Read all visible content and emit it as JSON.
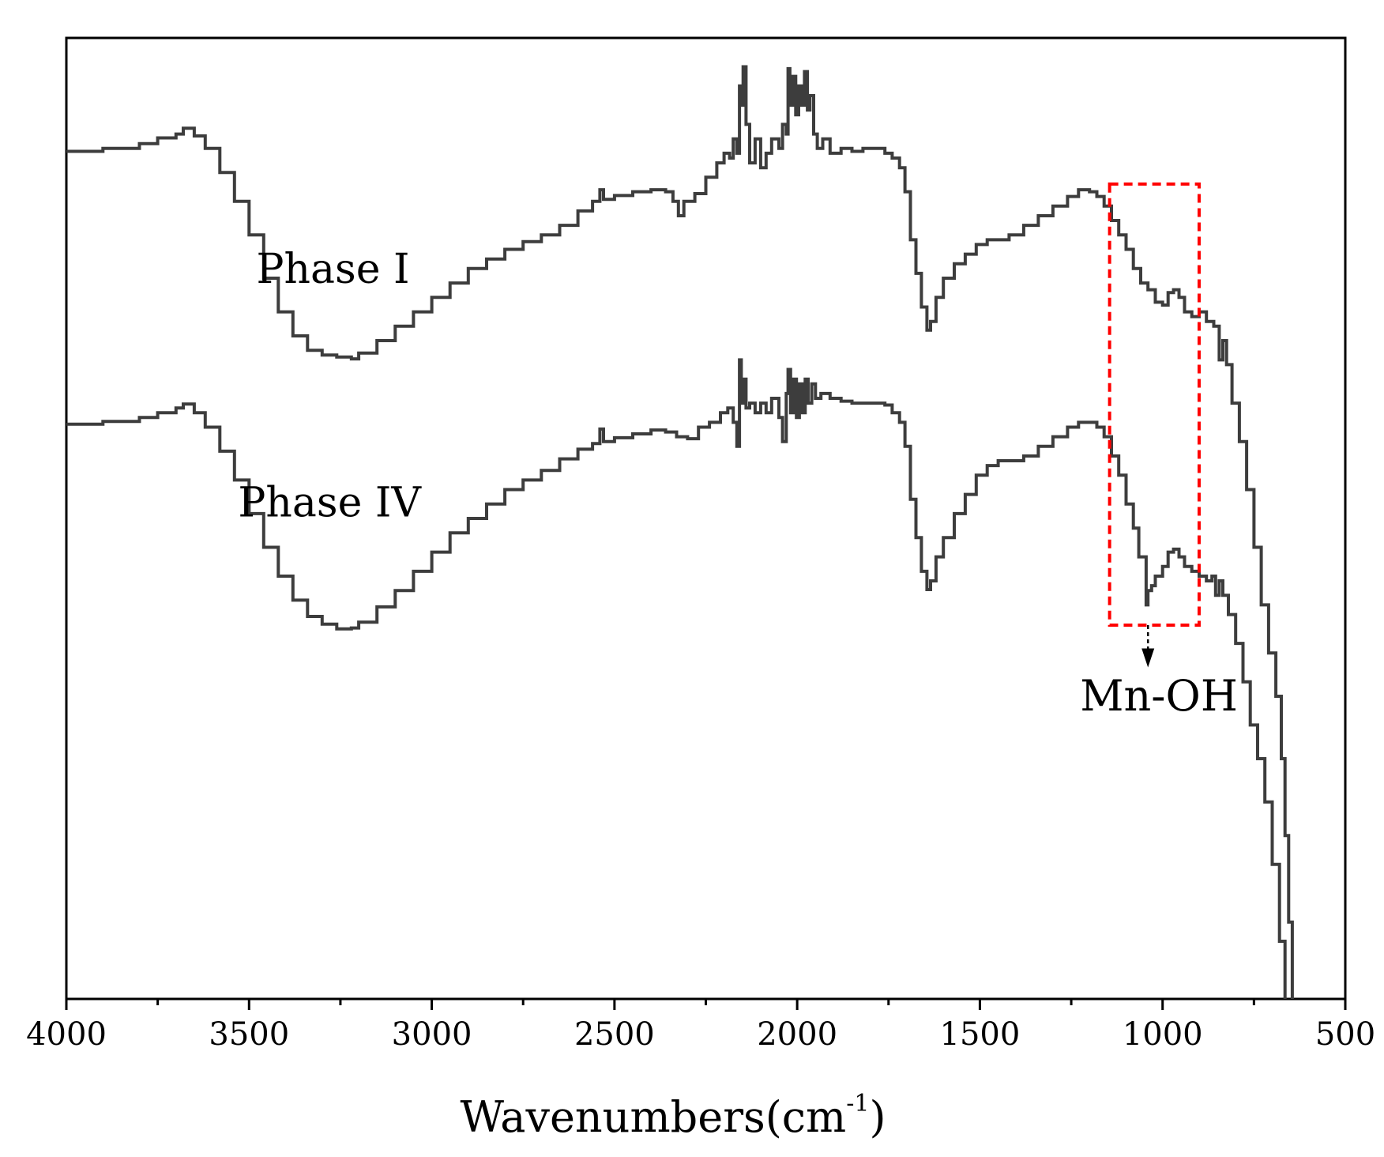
{
  "chart_data": {
    "type": "line",
    "title": "",
    "xlabel": "Wavenumbers(cm",
    "xlabel_sup": "-1",
    "xlabel_close": ")",
    "ylabel": "",
    "xlim": [
      4000,
      500
    ],
    "ylim": [
      0,
      100
    ],
    "x_ticks": [
      {
        "value": 4000,
        "label": "4000"
      },
      {
        "value": 3500,
        "label": "3500"
      },
      {
        "value": 3000,
        "label": "3000"
      },
      {
        "value": 2500,
        "label": "2500"
      },
      {
        "value": 2000,
        "label": "2000"
      },
      {
        "value": 1500,
        "label": "1500"
      },
      {
        "value": 1000,
        "label": "1000"
      },
      {
        "value": 500,
        "label": "500"
      }
    ],
    "x_minor_ticks": [
      3750,
      3250,
      2750,
      2250,
      1750,
      1250,
      750
    ],
    "grid": false,
    "line_color": "#3d3d3d",
    "series": [
      {
        "name": "Phase I",
        "label_at": [
          3480,
          74.5
        ],
        "points": [
          [
            4000,
            88.2
          ],
          [
            3900,
            88.5
          ],
          [
            3800,
            89.0
          ],
          [
            3750,
            89.6
          ],
          [
            3700,
            90.0
          ],
          [
            3680,
            90.6
          ],
          [
            3650,
            89.8
          ],
          [
            3620,
            88.5
          ],
          [
            3580,
            86.0
          ],
          [
            3540,
            83.0
          ],
          [
            3500,
            79.5
          ],
          [
            3460,
            75.0
          ],
          [
            3420,
            71.5
          ],
          [
            3380,
            69.0
          ],
          [
            3340,
            67.5
          ],
          [
            3300,
            67.0
          ],
          [
            3260,
            66.8
          ],
          [
            3220,
            66.6
          ],
          [
            3200,
            67.2
          ],
          [
            3150,
            68.5
          ],
          [
            3100,
            70.0
          ],
          [
            3050,
            71.5
          ],
          [
            3000,
            73.0
          ],
          [
            2950,
            74.5
          ],
          [
            2900,
            76.0
          ],
          [
            2850,
            77.0
          ],
          [
            2800,
            78.0
          ],
          [
            2750,
            78.8
          ],
          [
            2700,
            79.5
          ],
          [
            2650,
            80.5
          ],
          [
            2600,
            82.0
          ],
          [
            2560,
            83.0
          ],
          [
            2540,
            84.2
          ],
          [
            2530,
            83.2
          ],
          [
            2500,
            83.6
          ],
          [
            2450,
            84.0
          ],
          [
            2400,
            84.2
          ],
          [
            2360,
            84.0
          ],
          [
            2340,
            83.0
          ],
          [
            2325,
            81.5
          ],
          [
            2310,
            83.0
          ],
          [
            2280,
            83.8
          ],
          [
            2250,
            85.5
          ],
          [
            2220,
            87.0
          ],
          [
            2200,
            88.0
          ],
          [
            2185,
            87.5
          ],
          [
            2175,
            89.5
          ],
          [
            2165,
            88.0
          ],
          [
            2158,
            95.0
          ],
          [
            2153,
            93.0
          ],
          [
            2148,
            97.0
          ],
          [
            2140,
            91.0
          ],
          [
            2130,
            87.0
          ],
          [
            2115,
            89.5
          ],
          [
            2100,
            86.5
          ],
          [
            2085,
            88.0
          ],
          [
            2070,
            89.5
          ],
          [
            2050,
            88.5
          ],
          [
            2040,
            91.0
          ],
          [
            2030,
            90.0
          ],
          [
            2025,
            96.8
          ],
          [
            2020,
            93.0
          ],
          [
            2012,
            96.0
          ],
          [
            2004,
            92.0
          ],
          [
            1996,
            95.0
          ],
          [
            1988,
            93.0
          ],
          [
            1980,
            96.5
          ],
          [
            1972,
            92.5
          ],
          [
            1965,
            94.0
          ],
          [
            1955,
            90.0
          ],
          [
            1945,
            88.5
          ],
          [
            1930,
            89.5
          ],
          [
            1910,
            88.0
          ],
          [
            1880,
            88.5
          ],
          [
            1850,
            88.2
          ],
          [
            1820,
            88.5
          ],
          [
            1790,
            88.5
          ],
          [
            1760,
            88.0
          ],
          [
            1740,
            87.5
          ],
          [
            1720,
            86.5
          ],
          [
            1705,
            84.0
          ],
          [
            1690,
            79.0
          ],
          [
            1675,
            75.5
          ],
          [
            1660,
            72.0
          ],
          [
            1645,
            69.6
          ],
          [
            1635,
            70.5
          ],
          [
            1620,
            73.0
          ],
          [
            1600,
            75.0
          ],
          [
            1570,
            76.5
          ],
          [
            1540,
            77.5
          ],
          [
            1510,
            78.5
          ],
          [
            1480,
            79.0
          ],
          [
            1450,
            79.0
          ],
          [
            1420,
            79.5
          ],
          [
            1380,
            80.5
          ],
          [
            1340,
            81.5
          ],
          [
            1300,
            82.5
          ],
          [
            1260,
            83.5
          ],
          [
            1230,
            84.2
          ],
          [
            1200,
            84.0
          ],
          [
            1180,
            83.5
          ],
          [
            1160,
            82.5
          ],
          [
            1140,
            81.0
          ],
          [
            1120,
            79.5
          ],
          [
            1100,
            78.0
          ],
          [
            1080,
            76.0
          ],
          [
            1060,
            74.5
          ],
          [
            1040,
            73.8
          ],
          [
            1020,
            72.5
          ],
          [
            1000,
            72.2
          ],
          [
            985,
            73.5
          ],
          [
            970,
            73.8
          ],
          [
            955,
            73.0
          ],
          [
            940,
            71.5
          ],
          [
            920,
            71.0
          ],
          [
            900,
            71.5
          ],
          [
            880,
            70.5
          ],
          [
            860,
            70.0
          ],
          [
            845,
            66.5
          ],
          [
            835,
            68.5
          ],
          [
            825,
            66.0
          ],
          [
            810,
            62.0
          ],
          [
            790,
            58.0
          ],
          [
            770,
            53.0
          ],
          [
            750,
            47.0
          ],
          [
            730,
            41.0
          ],
          [
            710,
            36.0
          ],
          [
            690,
            31.5
          ],
          [
            675,
            25.0
          ],
          [
            665,
            17.0
          ],
          [
            655,
            8.0
          ],
          [
            645,
            0.0
          ]
        ]
      },
      {
        "name": "Phase IV",
        "label_at": [
          3530,
          50.2
        ],
        "points": [
          [
            4000,
            59.8
          ],
          [
            3900,
            60.1
          ],
          [
            3800,
            60.5
          ],
          [
            3750,
            61.0
          ],
          [
            3700,
            61.5
          ],
          [
            3680,
            61.9
          ],
          [
            3650,
            61.0
          ],
          [
            3620,
            59.5
          ],
          [
            3580,
            57.0
          ],
          [
            3540,
            54.0
          ],
          [
            3500,
            50.5
          ],
          [
            3460,
            47.0
          ],
          [
            3420,
            44.0
          ],
          [
            3380,
            41.5
          ],
          [
            3340,
            39.8
          ],
          [
            3300,
            39.0
          ],
          [
            3260,
            38.5
          ],
          [
            3220,
            38.6
          ],
          [
            3200,
            39.2
          ],
          [
            3150,
            40.8
          ],
          [
            3100,
            42.5
          ],
          [
            3050,
            44.5
          ],
          [
            3000,
            46.5
          ],
          [
            2950,
            48.5
          ],
          [
            2900,
            50.0
          ],
          [
            2850,
            51.5
          ],
          [
            2800,
            53.0
          ],
          [
            2750,
            54.0
          ],
          [
            2700,
            55.0
          ],
          [
            2650,
            56.2
          ],
          [
            2600,
            57.2
          ],
          [
            2560,
            57.8
          ],
          [
            2540,
            59.3
          ],
          [
            2530,
            58.0
          ],
          [
            2500,
            58.4
          ],
          [
            2450,
            58.8
          ],
          [
            2400,
            59.2
          ],
          [
            2360,
            59.0
          ],
          [
            2330,
            58.5
          ],
          [
            2300,
            58.3
          ],
          [
            2270,
            59.5
          ],
          [
            2240,
            60.0
          ],
          [
            2210,
            61.0
          ],
          [
            2190,
            61.5
          ],
          [
            2175,
            60.0
          ],
          [
            2165,
            57.5
          ],
          [
            2158,
            66.5
          ],
          [
            2153,
            62.0
          ],
          [
            2148,
            64.5
          ],
          [
            2140,
            61.5
          ],
          [
            2130,
            62.0
          ],
          [
            2115,
            61.0
          ],
          [
            2100,
            62.0
          ],
          [
            2085,
            61.0
          ],
          [
            2070,
            62.5
          ],
          [
            2050,
            60.5
          ],
          [
            2040,
            58.0
          ],
          [
            2030,
            63.0
          ],
          [
            2025,
            65.5
          ],
          [
            2018,
            61.0
          ],
          [
            2010,
            64.5
          ],
          [
            2002,
            60.5
          ],
          [
            1994,
            64.0
          ],
          [
            1986,
            61.0
          ],
          [
            1978,
            64.5
          ],
          [
            1970,
            62.0
          ],
          [
            1960,
            64.0
          ],
          [
            1950,
            62.5
          ],
          [
            1935,
            63.0
          ],
          [
            1910,
            62.5
          ],
          [
            1880,
            62.2
          ],
          [
            1850,
            62.0
          ],
          [
            1820,
            62.0
          ],
          [
            1790,
            62.0
          ],
          [
            1760,
            61.8
          ],
          [
            1740,
            61.0
          ],
          [
            1720,
            60.0
          ],
          [
            1705,
            57.5
          ],
          [
            1690,
            52.0
          ],
          [
            1675,
            48.0
          ],
          [
            1660,
            44.5
          ],
          [
            1645,
            42.6
          ],
          [
            1635,
            43.5
          ],
          [
            1620,
            46.0
          ],
          [
            1600,
            48.0
          ],
          [
            1570,
            50.5
          ],
          [
            1540,
            52.5
          ],
          [
            1510,
            54.5
          ],
          [
            1480,
            55.5
          ],
          [
            1450,
            56.0
          ],
          [
            1420,
            56.0
          ],
          [
            1380,
            56.5
          ],
          [
            1340,
            57.5
          ],
          [
            1300,
            58.5
          ],
          [
            1260,
            59.5
          ],
          [
            1230,
            60.0
          ],
          [
            1200,
            60.0
          ],
          [
            1180,
            59.5
          ],
          [
            1160,
            58.5
          ],
          [
            1140,
            56.5
          ],
          [
            1120,
            54.5
          ],
          [
            1100,
            51.5
          ],
          [
            1080,
            49.0
          ],
          [
            1065,
            46.0
          ],
          [
            1055,
            46.0
          ],
          [
            1045,
            41.0
          ],
          [
            1040,
            42.5
          ],
          [
            1030,
            43.0
          ],
          [
            1020,
            44.0
          ],
          [
            1000,
            45.0
          ],
          [
            985,
            46.5
          ],
          [
            970,
            46.8
          ],
          [
            955,
            46.0
          ],
          [
            940,
            45.0
          ],
          [
            920,
            44.5
          ],
          [
            900,
            44.0
          ],
          [
            880,
            43.5
          ],
          [
            865,
            44.0
          ],
          [
            855,
            42.0
          ],
          [
            845,
            43.5
          ],
          [
            835,
            42.0
          ],
          [
            820,
            40.0
          ],
          [
            800,
            37.0
          ],
          [
            780,
            33.0
          ],
          [
            760,
            28.5
          ],
          [
            740,
            25.0
          ],
          [
            720,
            20.5
          ],
          [
            700,
            14.0
          ],
          [
            680,
            6.0
          ],
          [
            665,
            0.0
          ]
        ]
      }
    ],
    "annotation": {
      "label": "Mn-OH",
      "label_at": [
        1010,
        30.0
      ],
      "box": {
        "x_from": 1145,
        "x_to": 900,
        "y_from": 38.9,
        "y_to": 84.8,
        "color": "#ff0000"
      },
      "arrow": {
        "x": 1040,
        "y_from": 38.9,
        "y_to": 34.5,
        "color": "#000000"
      }
    }
  }
}
